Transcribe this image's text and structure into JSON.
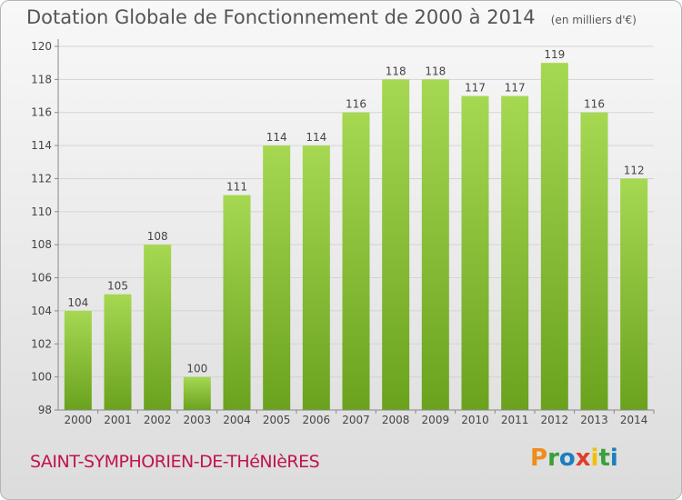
{
  "header": {
    "title": "Dotation Globale de Fonctionnement de 2000 à 2014",
    "subtitle": "(en milliers d'€)"
  },
  "footer": {
    "commune": "SAINT-SYMPHORIEN-DE-THéNIèRES",
    "logo_text": "Proxiti",
    "logo_colors": [
      "#f08c1a",
      "#3aa03a",
      "#1a7fc0",
      "#e03c2c",
      "#f0c000",
      "#3aa03a",
      "#1a7fc0"
    ]
  },
  "colors": {
    "bar_light": "#a6d852",
    "bar_dark": "#6aa21e",
    "grid": "#d4d4d4",
    "axis_text": "#444444"
  },
  "chart_data": {
    "type": "bar",
    "categories": [
      "2000",
      "2001",
      "2002",
      "2003",
      "2004",
      "2005",
      "2006",
      "2007",
      "2008",
      "2009",
      "2010",
      "2011",
      "2012",
      "2013",
      "2014"
    ],
    "values": [
      104,
      105,
      108,
      100,
      111,
      114,
      114,
      116,
      118,
      118,
      117,
      117,
      119,
      116,
      112
    ],
    "data_labels": [
      "104",
      "105",
      "108",
      "100",
      "111",
      "114",
      "114",
      "116",
      "118",
      "118",
      "117",
      "117",
      "119",
      "116",
      "112"
    ],
    "y_ticks": [
      "98",
      "100",
      "102",
      "104",
      "106",
      "108",
      "110",
      "112",
      "114",
      "116",
      "118",
      "120"
    ],
    "ylim": [
      98,
      120
    ],
    "grid": true,
    "title": "Dotation Globale de Fonctionnement de 2000 à 2014",
    "xlabel": "",
    "ylabel": ""
  }
}
